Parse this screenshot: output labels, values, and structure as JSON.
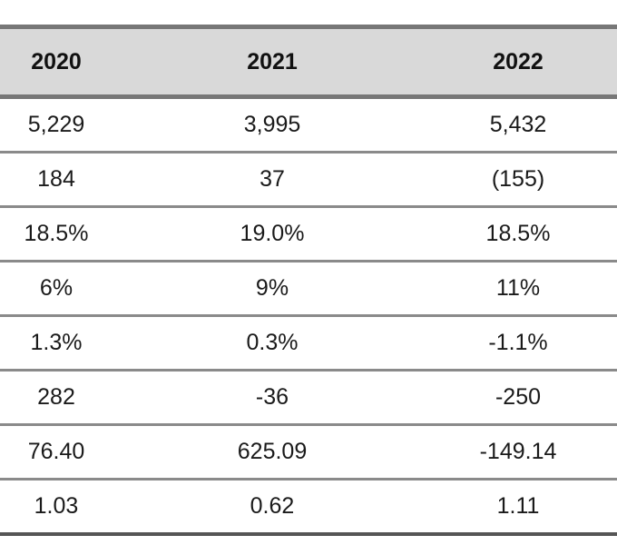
{
  "table": {
    "headers": [
      "2020",
      "2021",
      "2022"
    ],
    "rows": [
      [
        "5,229",
        "3,995",
        "5,432"
      ],
      [
        "184",
        "37",
        "(155)"
      ],
      [
        "18.5%",
        "19.0%",
        "18.5%"
      ],
      [
        "6%",
        "9%",
        "11%"
      ],
      [
        "1.3%",
        "0.3%",
        "-1.1%"
      ],
      [
        "282",
        "-36",
        "-250"
      ],
      [
        "76.40",
        "625.09",
        "-149.14"
      ],
      [
        "1.03",
        "0.62",
        "1.11"
      ]
    ]
  }
}
